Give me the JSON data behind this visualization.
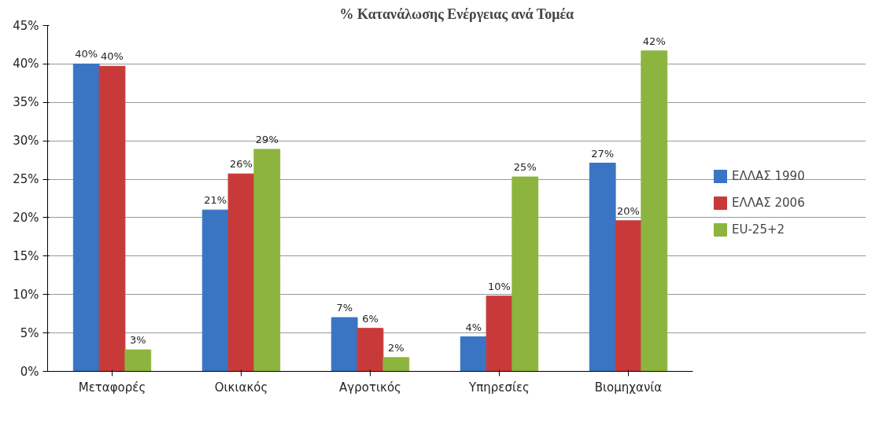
{
  "chart_data": {
    "type": "bar",
    "title": "% Κατανάλωσης Ενέργειας ανά Τομέα",
    "categories": [
      "Μεταφορές",
      "Οικιακός",
      "Αγροτικός",
      "Υπηρεσίες",
      "Βιομηχανία"
    ],
    "series": [
      {
        "name": "ΕΛΛΑΣ 1990",
        "color": "#3a75c4",
        "values": [
          40,
          21,
          7,
          4.5,
          27.1
        ],
        "value_labels": [
          "40%",
          "21%",
          "7%",
          "4%",
          "27%"
        ]
      },
      {
        "name": "ΕΛΛΑΣ 2006",
        "color": "#c83a3a",
        "values": [
          39.7,
          25.7,
          5.6,
          9.8,
          19.6
        ],
        "value_labels": [
          "40%",
          "26%",
          "6%",
          "10%",
          "20%"
        ]
      },
      {
        "name": "EU-25+2",
        "color": "#8db43e",
        "values": [
          2.8,
          28.9,
          1.8,
          25.3,
          41.7
        ],
        "value_labels": [
          "3%",
          "29%",
          "2%",
          "25%",
          "42%"
        ]
      }
    ],
    "ylim": [
      0,
      45
    ],
    "yticks": [
      {
        "value": 0,
        "label": "0%"
      },
      {
        "value": 5,
        "label": "5%"
      },
      {
        "value": 10,
        "label": "10%"
      },
      {
        "value": 15,
        "label": "15%"
      },
      {
        "value": 20,
        "label": "20%"
      },
      {
        "value": 25,
        "label": "25%"
      },
      {
        "value": 30,
        "label": "30%"
      },
      {
        "value": 35,
        "label": "35%"
      },
      {
        "value": 40,
        "label": "40%"
      },
      {
        "value": 45,
        "label": "45%"
      }
    ],
    "grid": "y",
    "legend": "right"
  }
}
